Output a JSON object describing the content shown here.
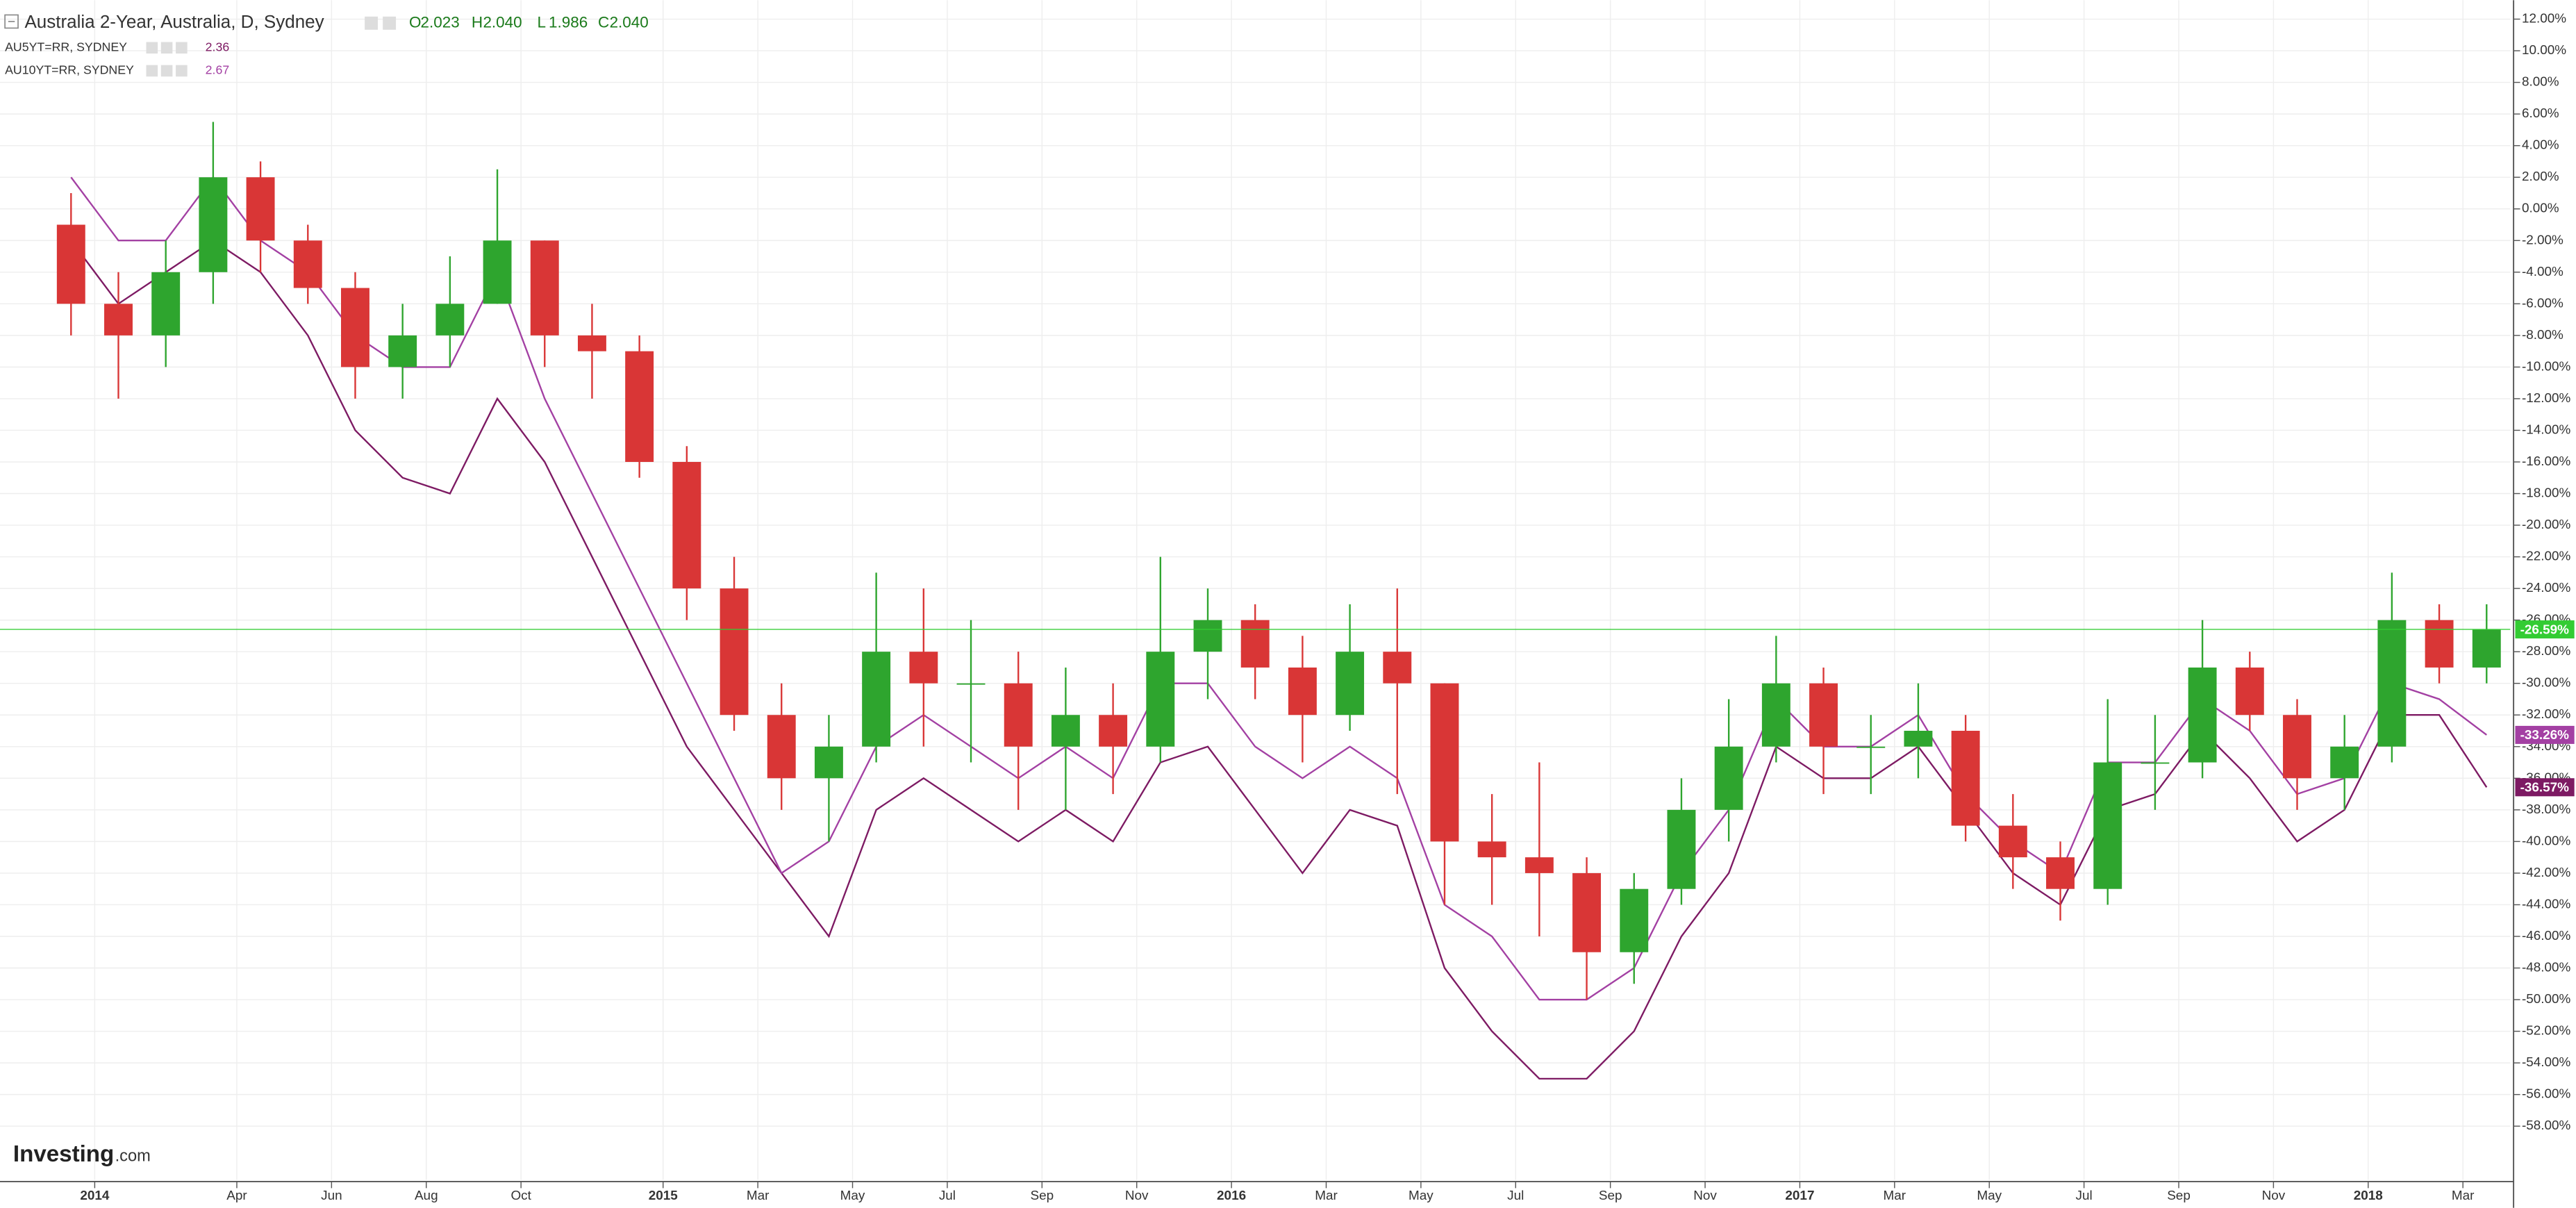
{
  "header": {
    "title": "Australia 2-Year, Australia, D, Sydney",
    "o_label": "O",
    "open": "2.023",
    "h_label": "H",
    "high": "2.040",
    "l_label": "L",
    "low": "1.986",
    "c_label": "C",
    "close": "2.040"
  },
  "logo": {
    "brand": "Investing",
    "suffix": ".com"
  },
  "chart_data": {
    "type": "candlestick",
    "x": [
      "2013-12",
      "2014-01",
      "2014-02",
      "2014-03",
      "2014-04",
      "2014-05",
      "2014-06",
      "2014-07",
      "2014-08",
      "2014-09",
      "2014-10",
      "2014-11",
      "2014-12",
      "2015-01",
      "2015-02",
      "2015-03",
      "2015-04",
      "2015-05",
      "2015-06",
      "2015-07",
      "2015-08",
      "2015-09",
      "2015-10",
      "2015-11",
      "2015-12",
      "2016-01",
      "2016-02",
      "2016-03",
      "2016-04",
      "2016-05",
      "2016-06",
      "2016-07",
      "2016-08",
      "2016-09",
      "2016-10",
      "2016-11",
      "2016-12",
      "2017-01",
      "2017-02",
      "2017-03",
      "2017-04",
      "2017-05",
      "2017-06",
      "2017-07",
      "2017-08",
      "2017-09",
      "2017-10",
      "2017-11",
      "2017-12",
      "2018-01",
      "2018-02",
      "2018-03"
    ],
    "open": [
      -1,
      -6,
      -8,
      -4,
      2,
      -2,
      -5,
      -10,
      -8,
      -6,
      -2,
      -8,
      -9,
      -16,
      -24,
      -32,
      -36,
      -34,
      -28,
      -30,
      -30,
      -34,
      -32,
      -34,
      -28,
      -26,
      -29,
      -32,
      -28,
      -30,
      -40,
      -41,
      -42,
      -47,
      -43,
      -38,
      -34,
      -30,
      -34,
      -34,
      -33,
      -39,
      -41,
      -43,
      -35,
      -35,
      -29,
      -32,
      -36,
      -34,
      -26,
      -29
    ],
    "high": [
      1,
      -4,
      -2,
      5.5,
      3,
      -1,
      -4,
      -6,
      -3,
      2.5,
      -2,
      -6,
      -8,
      -15,
      -22,
      -30,
      -32,
      -23,
      -24,
      -26,
      -28,
      -29,
      -30,
      -22,
      -24,
      -25,
      -27,
      -25,
      -24,
      -30,
      -37,
      -35,
      -41,
      -42,
      -36,
      -31,
      -27,
      -29,
      -32,
      -30,
      -32,
      -37,
      -40,
      -31,
      -32,
      -26,
      -28,
      -31,
      -32,
      -23,
      -25,
      -25
    ],
    "low": [
      -8,
      -12,
      -10,
      -6,
      -4,
      -6,
      -12,
      -12,
      -10,
      -6,
      -10,
      -12,
      -17,
      -26,
      -33,
      -38,
      -40,
      -35,
      -34,
      -35,
      -38,
      -38,
      -37,
      -35,
      -31,
      -31,
      -35,
      -33,
      -37,
      -44,
      -44,
      -46,
      -50,
      -49,
      -44,
      -40,
      -35,
      -37,
      -37,
      -36,
      -40,
      -43,
      -45,
      -44,
      -38,
      -36,
      -33,
      -38,
      -38,
      -35,
      -30,
      -30
    ],
    "close": [
      -6,
      -8,
      -4,
      2,
      -2,
      -5,
      -10,
      -8,
      -6,
      -2,
      -8,
      -9,
      -16,
      -24,
      -32,
      -36,
      -34,
      -28,
      -30,
      -30,
      -34,
      -32,
      -34,
      -28,
      -26,
      -29,
      -32,
      -28,
      -30,
      -40,
      -41,
      -42,
      -47,
      -43,
      -38,
      -34,
      -30,
      -34,
      -34,
      -33,
      -39,
      -41,
      -43,
      -35,
      -35,
      -29,
      -32,
      -36,
      -34,
      -26,
      -29,
      -26.59
    ],
    "up_color": "#2ea52e",
    "down_color": "#d93636",
    "last_color": "#33cc33",
    "last_label": "-26.59%",
    "series": [
      {
        "name": "AU5YT=RR, SYDNEY",
        "legend_value": "2.36",
        "color": "#7d1a63",
        "last_label": "-36.57%",
        "values": [
          -2,
          -6,
          -4,
          -2,
          -4,
          -8,
          -14,
          -17,
          -18,
          -12,
          -16,
          -22,
          -28,
          -34,
          -38,
          -42,
          -46,
          -38,
          -36,
          -38,
          -40,
          -38,
          -40,
          -35,
          -34,
          -38,
          -42,
          -38,
          -39,
          -48,
          -52,
          -55,
          -55,
          -52,
          -46,
          -42,
          -34,
          -36,
          -36,
          -34,
          -38,
          -42,
          -44,
          -38,
          -37,
          -33,
          -36,
          -40,
          -38,
          -32,
          -32,
          -36.57
        ]
      },
      {
        "name": "AU10YT=RR, SYDNEY",
        "legend_value": "2.67",
        "color": "#a340a3",
        "last_label": "-33.26%",
        "values": [
          2,
          -2,
          -2,
          2,
          -2,
          -4,
          -8,
          -10,
          -10,
          -4,
          -12,
          -18,
          -24,
          -30,
          -36,
          -42,
          -40,
          -34,
          -32,
          -34,
          -36,
          -34,
          -36,
          -30,
          -30,
          -34,
          -36,
          -34,
          -36,
          -44,
          -46,
          -50,
          -50,
          -48,
          -42,
          -38,
          -31,
          -34,
          -34,
          -32,
          -37,
          -40,
          -42,
          -35,
          -35,
          -31,
          -33,
          -37,
          -36,
          -30,
          -31,
          -33.26
        ]
      }
    ],
    "xlim": [
      "2013-11",
      "2018-04"
    ],
    "xticks": [
      {
        "value": "2014-01",
        "label": "2014"
      },
      {
        "value": "2014-04",
        "label": "Apr"
      },
      {
        "value": "2014-06",
        "label": "Jun"
      },
      {
        "value": "2014-08",
        "label": "Aug"
      },
      {
        "value": "2014-10",
        "label": "Oct"
      },
      {
        "value": "2015-01",
        "label": "2015"
      },
      {
        "value": "2015-03",
        "label": "Mar"
      },
      {
        "value": "2015-05",
        "label": "May"
      },
      {
        "value": "2015-07",
        "label": "Jul"
      },
      {
        "value": "2015-09",
        "label": "Sep"
      },
      {
        "value": "2015-11",
        "label": "Nov"
      },
      {
        "value": "2016-01",
        "label": "2016"
      },
      {
        "value": "2016-03",
        "label": "Mar"
      },
      {
        "value": "2016-05",
        "label": "May"
      },
      {
        "value": "2016-07",
        "label": "Jul"
      },
      {
        "value": "2016-09",
        "label": "Sep"
      },
      {
        "value": "2016-11",
        "label": "Nov"
      },
      {
        "value": "2017-01",
        "label": "2017"
      },
      {
        "value": "2017-03",
        "label": "Mar"
      },
      {
        "value": "2017-05",
        "label": "May"
      },
      {
        "value": "2017-07",
        "label": "Jul"
      },
      {
        "value": "2017-09",
        "label": "Sep"
      },
      {
        "value": "2017-11",
        "label": "Nov"
      },
      {
        "value": "2018-01",
        "label": "2018"
      },
      {
        "value": "2018-03",
        "label": "Mar"
      }
    ],
    "ylim": [
      -61.4,
      13.2
    ],
    "yticks": [
      {
        "value": 12,
        "label": "12.00%"
      },
      {
        "value": 10,
        "label": "10.00%"
      },
      {
        "value": 8,
        "label": "8.00%"
      },
      {
        "value": 6,
        "label": "6.00%"
      },
      {
        "value": 4,
        "label": "4.00%"
      },
      {
        "value": 2,
        "label": "2.00%"
      },
      {
        "value": 0,
        "label": "0.00%"
      },
      {
        "value": -2,
        "label": "-2.00%"
      },
      {
        "value": -4,
        "label": "-4.00%"
      },
      {
        "value": -6,
        "label": "-6.00%"
      },
      {
        "value": -8,
        "label": "-8.00%"
      },
      {
        "value": -10,
        "label": "-10.00%"
      },
      {
        "value": -12,
        "label": "-12.00%"
      },
      {
        "value": -14,
        "label": "-14.00%"
      },
      {
        "value": -16,
        "label": "-16.00%"
      },
      {
        "value": -18,
        "label": "-18.00%"
      },
      {
        "value": -20,
        "label": "-20.00%"
      },
      {
        "value": -22,
        "label": "-22.00%"
      },
      {
        "value": -24,
        "label": "-24.00%"
      },
      {
        "value": -26,
        "label": "-26.00%"
      },
      {
        "value": -28,
        "label": "-28.00%"
      },
      {
        "value": -30,
        "label": "-30.00%"
      },
      {
        "value": -32,
        "label": "-32.00%"
      },
      {
        "value": -34,
        "label": "-34.00%"
      },
      {
        "value": -36,
        "label": "-36.00%"
      },
      {
        "value": -38,
        "label": "-38.00%"
      },
      {
        "value": -40,
        "label": "-40.00%"
      },
      {
        "value": -42,
        "label": "-42.00%"
      },
      {
        "value": -44,
        "label": "-44.00%"
      },
      {
        "value": -46,
        "label": "-46.00%"
      },
      {
        "value": -48,
        "label": "-48.00%"
      },
      {
        "value": -50,
        "label": "-50.00%"
      },
      {
        "value": -52,
        "label": "-52.00%"
      },
      {
        "value": -54,
        "label": "-54.00%"
      },
      {
        "value": -56,
        "label": "-56.00%"
      },
      {
        "value": -58,
        "label": "-58.00%"
      }
    ],
    "grid": true
  }
}
